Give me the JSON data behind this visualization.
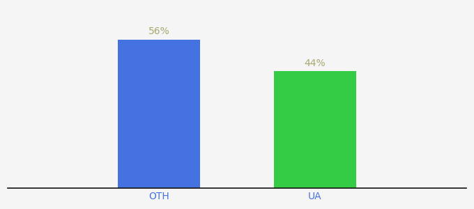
{
  "categories": [
    "OTH",
    "UA"
  ],
  "values": [
    56,
    44
  ],
  "bar_colors": [
    "#4472e0",
    "#33cc44"
  ],
  "label_color": "#aaa870",
  "label_fontsize": 10,
  "tick_fontsize": 10,
  "tick_color": "#4472e0",
  "background_color": "#f5f5f5",
  "ylim": [
    0,
    68
  ],
  "bar_width": 0.18,
  "bar_positions": [
    0.33,
    0.67
  ],
  "xlim": [
    0.0,
    1.0
  ],
  "annotations": [
    "56%",
    "44%"
  ]
}
